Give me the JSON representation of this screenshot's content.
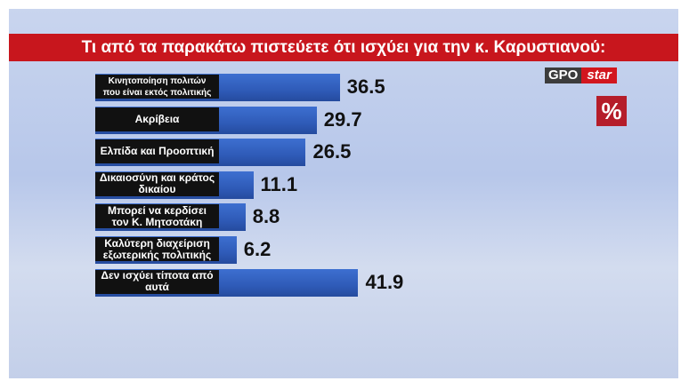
{
  "chart_data": {
    "type": "bar",
    "orientation": "horizontal",
    "title": "Τι από τα παρακάτω πιστεύετε ότι ισχύει για την κ. Καρυστιανού:",
    "categories": [
      "Κινητοποίηση πολιτών που είναι εκτός πολιτικής",
      "Ακρίβεια",
      "Ελπίδα και Προοπτική",
      "Δικαιοσύνη και κράτος δικαίου",
      "Μπορεί να κερδίσει τον Κ. Μητσοτάκη",
      "Καλύτερη διαχείριση εξωτερικής πολιτικής",
      "Δεν ισχύει τίποτα από αυτά"
    ],
    "values": [
      36.5,
      29.7,
      26.5,
      11.1,
      8.8,
      6.2,
      41.9
    ],
    "color": "#3d6fd0",
    "unit_badge": "%"
  },
  "logo": {
    "left": "GPO",
    "right": "star"
  }
}
